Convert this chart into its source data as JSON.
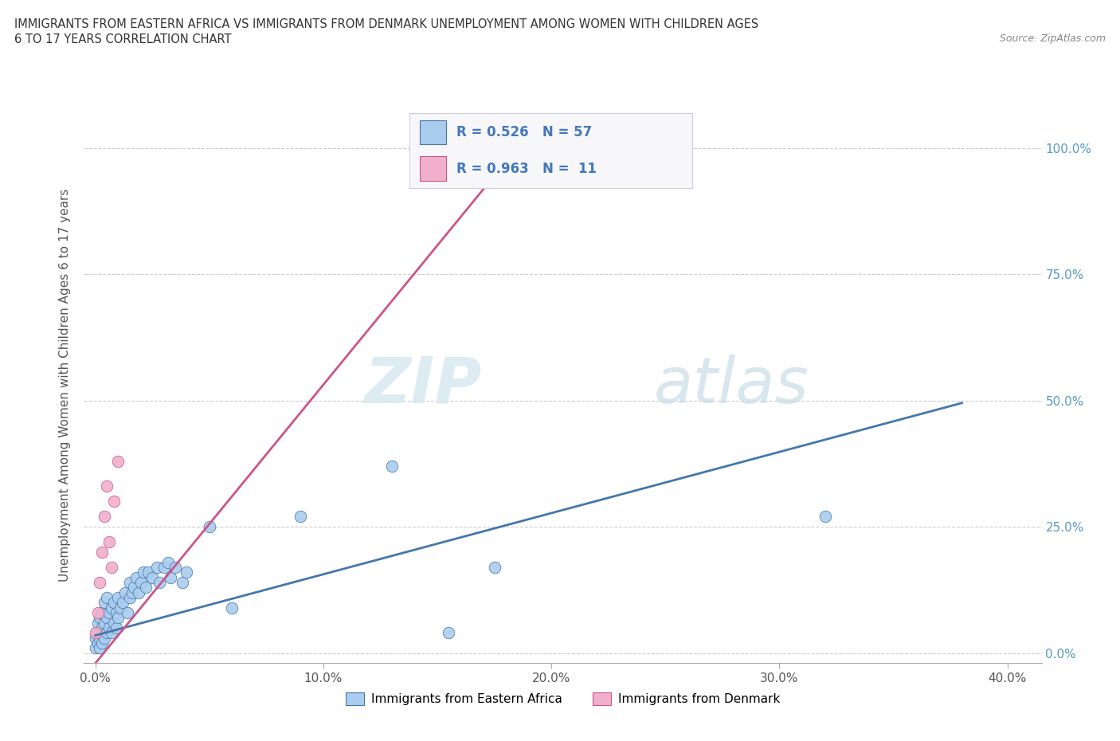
{
  "title_line1": "IMMIGRANTS FROM EASTERN AFRICA VS IMMIGRANTS FROM DENMARK UNEMPLOYMENT AMONG WOMEN WITH CHILDREN AGES",
  "title_line2": "6 TO 17 YEARS CORRELATION CHART",
  "source_text": "Source: ZipAtlas.com",
  "ylabel": "Unemployment Among Women with Children Ages 6 to 17 years",
  "xlabel_ticks": [
    "0.0%",
    "10.0%",
    "20.0%",
    "30.0%",
    "40.0%"
  ],
  "xlabel_vals": [
    0.0,
    0.1,
    0.2,
    0.3,
    0.4
  ],
  "ytick_labels": [
    "0.0%",
    "25.0%",
    "50.0%",
    "75.0%",
    "100.0%"
  ],
  "ytick_vals": [
    0.0,
    0.25,
    0.5,
    0.75,
    1.0
  ],
  "xlim": [
    -0.005,
    0.415
  ],
  "ylim": [
    -0.02,
    1.08
  ],
  "R_blue": 0.526,
  "N_blue": 57,
  "R_pink": 0.963,
  "N_pink": 11,
  "legend_label_blue": "Immigrants from Eastern Africa",
  "legend_label_pink": "Immigrants from Denmark",
  "color_blue": "#aaccee",
  "color_pink": "#f0b0cc",
  "line_color_blue": "#4477aa",
  "line_color_pink": "#cc5588",
  "watermark_zip": "ZIP",
  "watermark_atlas": "atlas",
  "blue_scatter_x": [
    0.0,
    0.0,
    0.001,
    0.001,
    0.001,
    0.002,
    0.002,
    0.002,
    0.003,
    0.003,
    0.003,
    0.004,
    0.004,
    0.004,
    0.005,
    0.005,
    0.005,
    0.006,
    0.006,
    0.007,
    0.007,
    0.008,
    0.008,
    0.009,
    0.009,
    0.01,
    0.01,
    0.011,
    0.012,
    0.013,
    0.014,
    0.015,
    0.015,
    0.016,
    0.017,
    0.018,
    0.019,
    0.02,
    0.021,
    0.022,
    0.023,
    0.025,
    0.027,
    0.028,
    0.03,
    0.032,
    0.033,
    0.035,
    0.038,
    0.04,
    0.05,
    0.06,
    0.09,
    0.13,
    0.155,
    0.175,
    0.32
  ],
  "blue_scatter_y": [
    0.01,
    0.03,
    0.02,
    0.04,
    0.06,
    0.01,
    0.03,
    0.07,
    0.02,
    0.05,
    0.08,
    0.03,
    0.06,
    0.1,
    0.04,
    0.07,
    0.11,
    0.05,
    0.08,
    0.04,
    0.09,
    0.06,
    0.1,
    0.05,
    0.08,
    0.07,
    0.11,
    0.09,
    0.1,
    0.12,
    0.08,
    0.11,
    0.14,
    0.12,
    0.13,
    0.15,
    0.12,
    0.14,
    0.16,
    0.13,
    0.16,
    0.15,
    0.17,
    0.14,
    0.17,
    0.18,
    0.15,
    0.17,
    0.14,
    0.16,
    0.25,
    0.09,
    0.27,
    0.37,
    0.04,
    0.17,
    0.27
  ],
  "pink_scatter_x": [
    0.0,
    0.001,
    0.002,
    0.003,
    0.004,
    0.005,
    0.006,
    0.007,
    0.008,
    0.01,
    0.185
  ],
  "pink_scatter_y": [
    0.04,
    0.08,
    0.14,
    0.2,
    0.27,
    0.33,
    0.22,
    0.17,
    0.3,
    0.38,
    1.0
  ],
  "blue_line_x": [
    0.0,
    0.38
  ],
  "blue_line_y": [
    0.035,
    0.495
  ],
  "pink_line_x": [
    0.0,
    0.185
  ],
  "pink_line_y": [
    -0.02,
    1.0
  ]
}
